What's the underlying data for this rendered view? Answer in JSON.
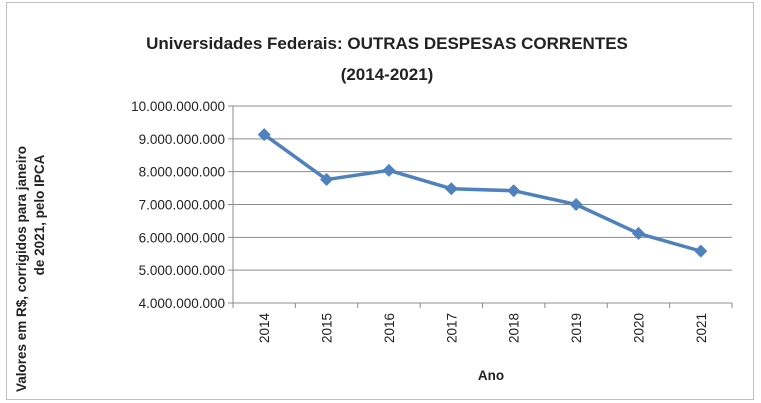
{
  "chart_data": {
    "type": "line",
    "title_line1": "Universidades Federais: OUTRAS DESPESAS CORRENTES",
    "title_line2": "(2014-2021)",
    "xlabel": "Ano",
    "ylabel_line1": "Valores em R$, corrigidos para janeiro",
    "ylabel_line2": "de 2021, pelo IPCA",
    "categories": [
      "2014",
      "2015",
      "2016",
      "2017",
      "2018",
      "2019",
      "2020",
      "2021"
    ],
    "values": [
      9130000000,
      7760000000,
      8040000000,
      7480000000,
      7420000000,
      7000000000,
      6120000000,
      5580000000
    ],
    "ylim": [
      4000000000,
      10000000000
    ],
    "yticks": [
      4000000000,
      5000000000,
      6000000000,
      7000000000,
      8000000000,
      9000000000,
      10000000000
    ],
    "ytick_labels": [
      "4.000.000.000",
      "5.000.000.000",
      "6.000.000.000",
      "7.000.000.000",
      "8.000.000.000",
      "9.000.000.000",
      "10.000.000.000"
    ],
    "grid": true,
    "legend": "none",
    "series_color": "#4f81bd",
    "grid_color": "#8c8c8c"
  }
}
